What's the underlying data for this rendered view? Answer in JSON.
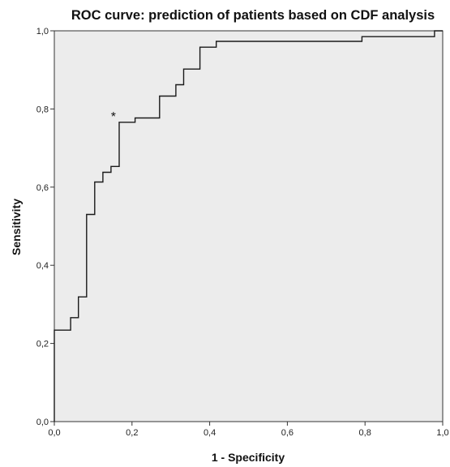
{
  "chart_data": {
    "type": "line",
    "title": "ROC curve: prediction of patients based on CDF analysis",
    "xlabel": "1 - Specificity",
    "ylabel": "Sensitivity",
    "xlim": [
      0.0,
      1.0
    ],
    "ylim": [
      0.0,
      1.0
    ],
    "xticks": [
      "0,0",
      "0,2",
      "0,4",
      "0,6",
      "0,8",
      "1,0"
    ],
    "yticks": [
      "0,0",
      "0,2",
      "0,4",
      "0,6",
      "0,8",
      "1,0"
    ],
    "grid": false,
    "background_color": "#ececec",
    "line_color": "#1a1a1a",
    "series": [
      {
        "x": [
          0.0,
          0.0,
          0.042,
          0.042,
          0.062,
          0.062,
          0.083,
          0.083,
          0.104,
          0.104,
          0.125,
          0.125,
          0.146,
          0.146,
          0.167,
          0.167,
          0.208,
          0.208,
          0.271,
          0.271,
          0.313,
          0.313,
          0.333,
          0.333,
          0.375,
          0.375,
          0.417,
          0.417,
          0.792,
          0.792,
          0.979,
          0.979,
          1.0
        ],
        "y": [
          0.0,
          0.234,
          0.234,
          0.266,
          0.266,
          0.319,
          0.319,
          0.53,
          0.53,
          0.613,
          0.613,
          0.638,
          0.638,
          0.653,
          0.653,
          0.766,
          0.766,
          0.777,
          0.777,
          0.833,
          0.833,
          0.862,
          0.862,
          0.902,
          0.902,
          0.958,
          0.958,
          0.973,
          0.973,
          0.985,
          0.985,
          1.0,
          1.0
        ]
      }
    ],
    "annotations": [
      {
        "text": "*",
        "x": 0.152,
        "y": 0.77
      }
    ]
  }
}
